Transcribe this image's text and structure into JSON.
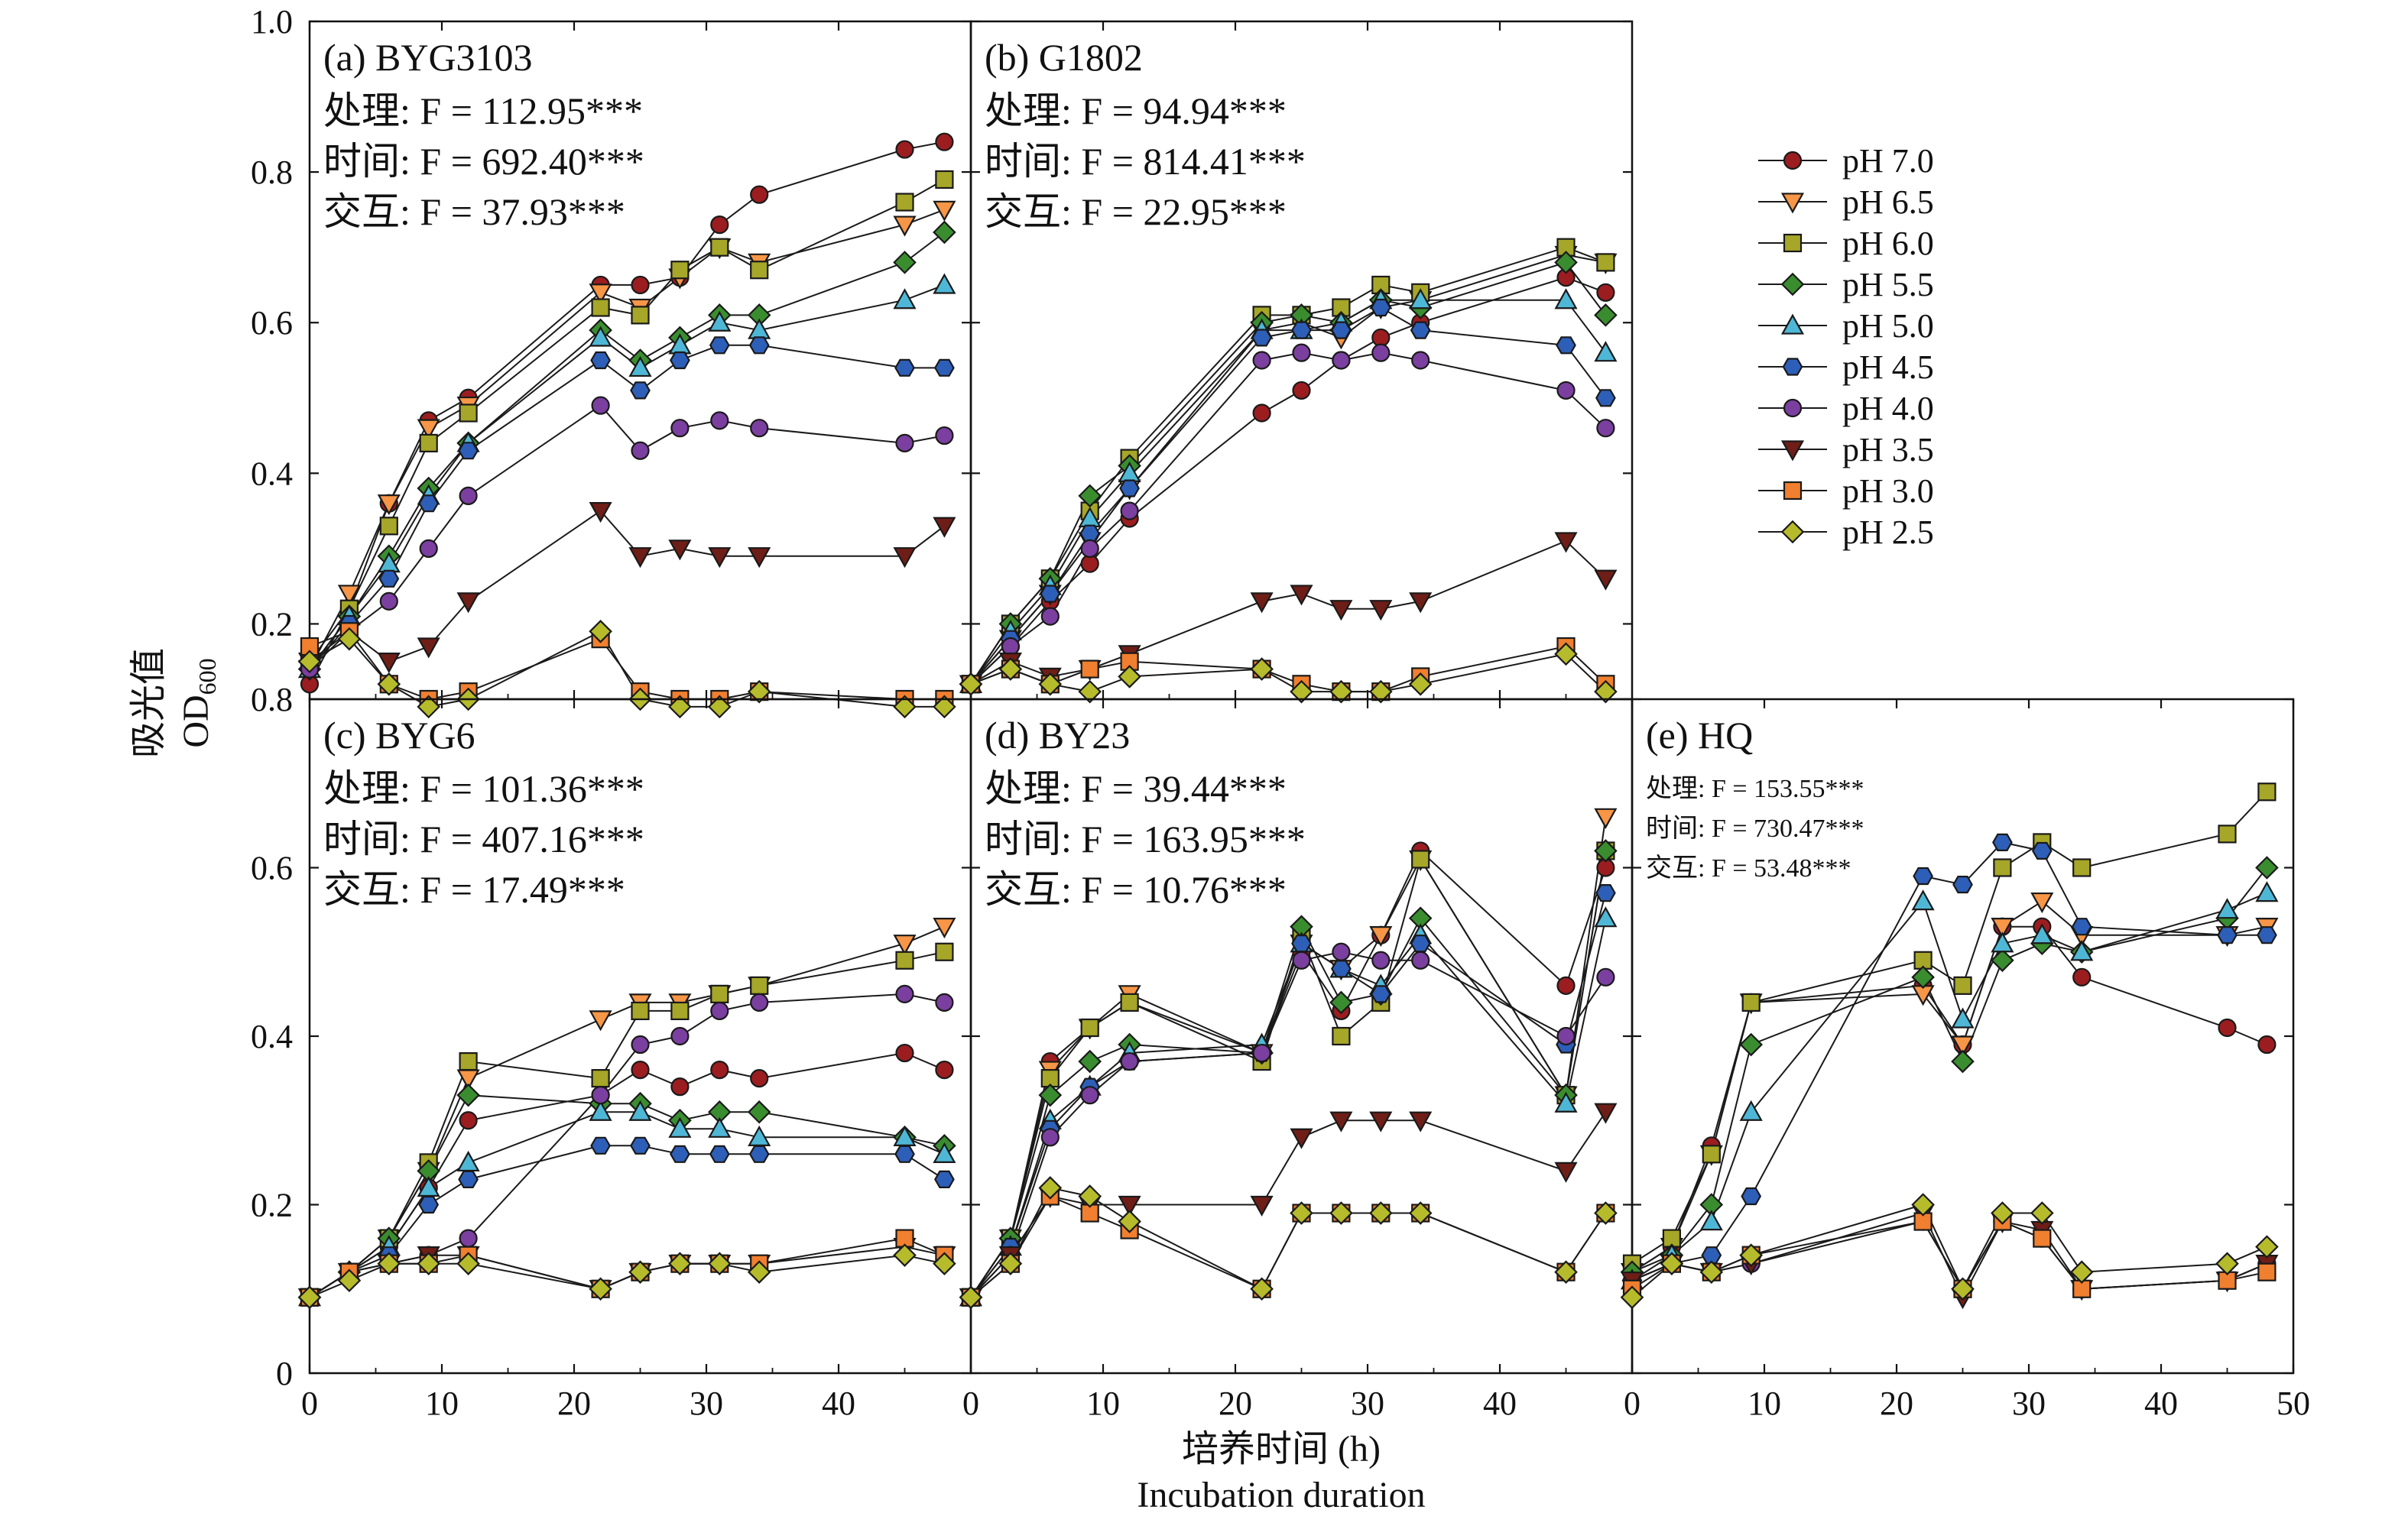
{
  "figure": {
    "ylabel_cn": "吸光值",
    "ylabel_od": "OD",
    "ylabel_od_sub": "600",
    "xlabel_cn": "培养时间 (h)",
    "xlabel_en": "Incubation duration"
  },
  "chart_data": [
    {
      "type": "line",
      "panel": "(a) BYG3103",
      "stats": [
        "处理: F = 112.95***",
        "时间: F = 692.40***",
        "交互: F = 37.93***"
      ],
      "x_ticks": [
        "0",
        "10",
        "20",
        "30",
        "40"
      ],
      "y_ticks": [
        "0.2",
        "0.4",
        "0.6",
        "0.8",
        "1.0"
      ],
      "xlim": [
        0,
        50
      ],
      "ylim": [
        0.1,
        1.0
      ],
      "x": [
        0,
        3,
        6,
        9,
        12,
        22,
        25,
        28,
        31,
        34,
        45,
        48
      ],
      "series": [
        {
          "name": "pH 7.0",
          "values": [
            0.12,
            0.22,
            0.36,
            0.47,
            0.5,
            0.65,
            0.65,
            0.66,
            0.73,
            0.77,
            0.83,
            0.84
          ]
        },
        {
          "name": "pH 6.5",
          "values": [
            0.14,
            0.24,
            0.36,
            0.46,
            0.49,
            0.64,
            0.62,
            0.66,
            0.7,
            0.68,
            0.73,
            0.75
          ]
        },
        {
          "name": "pH 6.0",
          "values": [
            0.15,
            0.22,
            0.33,
            0.44,
            0.48,
            0.62,
            0.61,
            0.67,
            0.7,
            0.67,
            0.76,
            0.79
          ]
        },
        {
          "name": "pH 5.5",
          "values": [
            0.14,
            0.21,
            0.29,
            0.38,
            0.44,
            0.59,
            0.55,
            0.58,
            0.61,
            0.61,
            0.68,
            0.72
          ]
        },
        {
          "name": "pH 5.0",
          "values": [
            0.14,
            0.21,
            0.28,
            0.37,
            0.44,
            0.58,
            0.54,
            0.57,
            0.6,
            0.59,
            0.63,
            0.65
          ]
        },
        {
          "name": "pH 4.5",
          "values": [
            0.14,
            0.2,
            0.26,
            0.36,
            0.43,
            0.55,
            0.51,
            0.55,
            0.57,
            0.57,
            0.54,
            0.54
          ]
        },
        {
          "name": "pH 4.0",
          "values": [
            0.14,
            0.19,
            0.23,
            0.3,
            0.37,
            0.49,
            0.43,
            0.46,
            0.47,
            0.46,
            0.44,
            0.45
          ]
        },
        {
          "name": "pH 3.5",
          "values": [
            0.15,
            0.19,
            0.15,
            0.17,
            0.23,
            0.35,
            0.29,
            0.3,
            0.29,
            0.29,
            0.29,
            0.33
          ]
        },
        {
          "name": "pH 3.0",
          "values": [
            0.17,
            0.19,
            0.12,
            0.1,
            0.11,
            0.18,
            0.11,
            0.1,
            0.1,
            0.11,
            0.1,
            0.1
          ]
        },
        {
          "name": "pH 2.5",
          "values": [
            0.15,
            0.18,
            0.12,
            0.09,
            0.1,
            0.19,
            0.1,
            0.09,
            0.09,
            0.11,
            0.09,
            0.09
          ]
        }
      ]
    },
    {
      "type": "line",
      "panel": "(b) G1802",
      "stats": [
        "处理: F = 94.94***",
        "时间: F = 814.41***",
        "交互: F = 22.95***"
      ],
      "x_ticks": [
        "0",
        "10",
        "20",
        "30",
        "40"
      ],
      "y_ticks": [],
      "xlim": [
        0,
        50
      ],
      "ylim": [
        0.1,
        1.0
      ],
      "x": [
        0,
        3,
        6,
        9,
        12,
        22,
        25,
        28,
        31,
        34,
        45,
        48
      ],
      "series": [
        {
          "name": "pH 7.0",
          "values": [
            0.12,
            0.17,
            0.23,
            0.28,
            0.34,
            0.48,
            0.51,
            0.55,
            0.58,
            0.6,
            0.66,
            0.64
          ]
        },
        {
          "name": "pH 6.5",
          "values": [
            0.12,
            0.18,
            0.24,
            0.31,
            0.38,
            0.59,
            0.6,
            0.58,
            0.62,
            0.63,
            0.69,
            0.68
          ]
        },
        {
          "name": "pH 6.0",
          "values": [
            0.12,
            0.2,
            0.26,
            0.35,
            0.42,
            0.61,
            0.61,
            0.62,
            0.65,
            0.64,
            0.7,
            0.68
          ]
        },
        {
          "name": "pH 5.5",
          "values": [
            0.12,
            0.2,
            0.26,
            0.37,
            0.41,
            0.6,
            0.61,
            0.6,
            0.63,
            0.62,
            0.68,
            0.61
          ]
        },
        {
          "name": "pH 5.0",
          "values": [
            0.12,
            0.19,
            0.25,
            0.34,
            0.4,
            0.59,
            0.59,
            0.6,
            0.63,
            0.63,
            0.63,
            0.56
          ]
        },
        {
          "name": "pH 4.5",
          "values": [
            0.12,
            0.18,
            0.24,
            0.32,
            0.38,
            0.58,
            0.59,
            0.59,
            0.62,
            0.59,
            0.57,
            0.5
          ]
        },
        {
          "name": "pH 4.0",
          "values": [
            0.12,
            0.17,
            0.21,
            0.3,
            0.35,
            0.55,
            0.56,
            0.55,
            0.56,
            0.55,
            0.51,
            0.46
          ]
        },
        {
          "name": "pH 3.5",
          "values": [
            0.12,
            0.15,
            0.13,
            0.14,
            0.16,
            0.23,
            0.24,
            0.22,
            0.22,
            0.23,
            0.31,
            0.26
          ]
        },
        {
          "name": "pH 3.0",
          "values": [
            0.12,
            0.14,
            0.12,
            0.14,
            0.15,
            0.14,
            0.12,
            0.11,
            0.11,
            0.13,
            0.17,
            0.12
          ]
        },
        {
          "name": "pH 2.5",
          "values": [
            0.12,
            0.14,
            0.12,
            0.11,
            0.13,
            0.14,
            0.11,
            0.11,
            0.11,
            0.12,
            0.16,
            0.11
          ]
        }
      ]
    },
    {
      "type": "line",
      "panel": "(c) BYG6",
      "stats": [
        "处理: F = 101.36***",
        "时间: F = 407.16***",
        "交互: F = 17.49***"
      ],
      "x_ticks": [
        "0",
        "10",
        "20",
        "30",
        "40"
      ],
      "y_ticks": [
        "0",
        "0.2",
        "0.4",
        "0.6",
        "0.8"
      ],
      "xlim": [
        0,
        50
      ],
      "ylim": [
        0,
        0.8
      ],
      "x": [
        0,
        3,
        6,
        9,
        12,
        22,
        25,
        28,
        31,
        34,
        45,
        48
      ],
      "series": [
        {
          "name": "pH 7.0",
          "values": [
            0.09,
            0.12,
            0.15,
            0.22,
            0.3,
            0.33,
            0.36,
            0.34,
            0.36,
            0.35,
            0.38,
            0.36
          ]
        },
        {
          "name": "pH 6.5",
          "values": [
            0.09,
            0.12,
            0.16,
            0.24,
            0.35,
            0.42,
            0.44,
            0.44,
            0.45,
            0.46,
            0.51,
            0.53
          ]
        },
        {
          "name": "pH 6.0",
          "values": [
            0.09,
            0.12,
            0.16,
            0.25,
            0.37,
            0.35,
            0.43,
            0.43,
            0.45,
            0.46,
            0.49,
            0.5
          ]
        },
        {
          "name": "pH 5.5",
          "values": [
            0.09,
            0.12,
            0.16,
            0.24,
            0.33,
            0.32,
            0.32,
            0.3,
            0.31,
            0.31,
            0.28,
            0.27
          ]
        },
        {
          "name": "pH 5.0",
          "values": [
            0.09,
            0.12,
            0.15,
            0.22,
            0.25,
            0.31,
            0.31,
            0.29,
            0.29,
            0.28,
            0.28,
            0.26
          ]
        },
        {
          "name": "pH 4.5",
          "values": [
            0.09,
            0.12,
            0.14,
            0.2,
            0.23,
            0.27,
            0.27,
            0.26,
            0.26,
            0.26,
            0.26,
            0.23
          ]
        },
        {
          "name": "pH 4.0",
          "values": [
            0.09,
            0.12,
            0.13,
            0.14,
            0.16,
            0.33,
            0.39,
            0.4,
            0.43,
            0.44,
            0.45,
            0.44
          ]
        },
        {
          "name": "pH 3.5",
          "values": [
            0.09,
            0.12,
            0.13,
            0.14,
            0.14,
            0.1,
            0.12,
            0.13,
            0.13,
            0.13,
            0.15,
            0.14
          ]
        },
        {
          "name": "pH 3.0",
          "values": [
            0.09,
            0.12,
            0.13,
            0.13,
            0.14,
            0.1,
            0.12,
            0.13,
            0.13,
            0.13,
            0.16,
            0.14
          ]
        },
        {
          "name": "pH 2.5",
          "values": [
            0.09,
            0.11,
            0.13,
            0.13,
            0.13,
            0.1,
            0.12,
            0.13,
            0.13,
            0.12,
            0.14,
            0.13
          ]
        }
      ]
    },
    {
      "type": "line",
      "panel": "(d) BY23",
      "stats": [
        "处理: F = 39.44***",
        "时间: F = 163.95***",
        "交互: F = 10.76***"
      ],
      "x_ticks": [
        "0",
        "10",
        "20",
        "30",
        "40"
      ],
      "y_ticks": [],
      "xlim": [
        0,
        50
      ],
      "ylim": [
        0,
        0.8
      ],
      "x": [
        0,
        3,
        6,
        9,
        12,
        22,
        25,
        28,
        31,
        34,
        45,
        48
      ],
      "series": [
        {
          "name": "pH 7.0",
          "values": [
            0.09,
            0.16,
            0.37,
            0.41,
            0.44,
            0.38,
            0.5,
            0.43,
            0.52,
            0.62,
            0.46,
            0.6
          ]
        },
        {
          "name": "pH 6.5",
          "values": [
            0.09,
            0.16,
            0.36,
            0.41,
            0.45,
            0.38,
            0.51,
            0.48,
            0.52,
            0.61,
            0.33,
            0.66
          ]
        },
        {
          "name": "pH 6.0",
          "values": [
            0.09,
            0.16,
            0.35,
            0.41,
            0.44,
            0.37,
            0.52,
            0.4,
            0.44,
            0.61,
            0.33,
            0.62
          ]
        },
        {
          "name": "pH 5.5",
          "values": [
            0.09,
            0.16,
            0.33,
            0.37,
            0.39,
            0.38,
            0.53,
            0.44,
            0.45,
            0.54,
            0.33,
            0.62
          ]
        },
        {
          "name": "pH 5.0",
          "values": [
            0.09,
            0.15,
            0.3,
            0.34,
            0.38,
            0.39,
            0.51,
            0.48,
            0.46,
            0.52,
            0.32,
            0.54
          ]
        },
        {
          "name": "pH 4.5",
          "values": [
            0.09,
            0.15,
            0.29,
            0.34,
            0.37,
            0.38,
            0.51,
            0.48,
            0.45,
            0.51,
            0.39,
            0.57
          ]
        },
        {
          "name": "pH 4.0",
          "values": [
            0.09,
            0.14,
            0.28,
            0.33,
            0.37,
            0.38,
            0.49,
            0.5,
            0.49,
            0.49,
            0.4,
            0.47
          ]
        },
        {
          "name": "pH 3.5",
          "values": [
            0.09,
            0.14,
            0.21,
            0.2,
            0.2,
            0.2,
            0.28,
            0.3,
            0.3,
            0.3,
            0.24,
            0.31
          ]
        },
        {
          "name": "pH 3.0",
          "values": [
            0.09,
            0.13,
            0.21,
            0.19,
            0.17,
            0.1,
            0.19,
            0.19,
            0.19,
            0.19,
            0.12,
            0.19
          ]
        },
        {
          "name": "pH 2.5",
          "values": [
            0.09,
            0.13,
            0.22,
            0.21,
            0.18,
            0.1,
            0.19,
            0.19,
            0.19,
            0.19,
            0.12,
            0.19
          ]
        }
      ]
    },
    {
      "type": "line",
      "panel": "(e) HQ",
      "stats": [
        "处理: F = 153.55***",
        "时间: F = 730.47***",
        "交互: F = 53.48***"
      ],
      "x_ticks": [
        "0",
        "10",
        "20",
        "30",
        "40",
        "50"
      ],
      "y_ticks": [],
      "xlim": [
        0,
        50
      ],
      "ylim": [
        0,
        0.8
      ],
      "x": [
        0,
        3,
        6,
        9,
        22,
        25,
        28,
        31,
        34,
        45,
        48
      ],
      "series": [
        {
          "name": "pH 7.0",
          "values": [
            0.12,
            0.15,
            0.27,
            0.44,
            0.46,
            0.39,
            0.53,
            0.53,
            0.47,
            0.41,
            0.39
          ]
        },
        {
          "name": "pH 6.5",
          "values": [
            0.12,
            0.15,
            0.26,
            0.44,
            0.45,
            0.39,
            0.53,
            0.56,
            0.52,
            0.52,
            0.53
          ]
        },
        {
          "name": "pH 6.0",
          "values": [
            0.13,
            0.16,
            0.26,
            0.44,
            0.49,
            0.46,
            0.6,
            0.63,
            0.6,
            0.64,
            0.69
          ]
        },
        {
          "name": "pH 5.5",
          "values": [
            0.12,
            0.14,
            0.2,
            0.39,
            0.47,
            0.37,
            0.49,
            0.51,
            0.5,
            0.54,
            0.6
          ]
        },
        {
          "name": "pH 5.0",
          "values": [
            0.11,
            0.14,
            0.18,
            0.31,
            0.56,
            0.42,
            0.51,
            0.52,
            0.5,
            0.55,
            0.57
          ]
        },
        {
          "name": "pH 4.5",
          "values": [
            0.11,
            0.13,
            0.14,
            0.21,
            0.59,
            0.58,
            0.63,
            0.62,
            0.53,
            0.52,
            0.52
          ]
        },
        {
          "name": "pH 4.0",
          "values": [
            0.11,
            0.13,
            0.12,
            0.13,
            0.18,
            0.1,
            0.18,
            0.16,
            0.1,
            0.11,
            0.13
          ]
        },
        {
          "name": "pH 3.5",
          "values": [
            0.11,
            0.13,
            0.12,
            0.13,
            0.19,
            0.09,
            0.18,
            0.17,
            0.1,
            0.11,
            0.13
          ]
        },
        {
          "name": "pH 3.0",
          "values": [
            0.1,
            0.13,
            0.12,
            0.14,
            0.18,
            0.1,
            0.18,
            0.16,
            0.1,
            0.11,
            0.12
          ]
        },
        {
          "name": "pH 2.5",
          "values": [
            0.09,
            0.13,
            0.12,
            0.14,
            0.2,
            0.1,
            0.19,
            0.19,
            0.12,
            0.13,
            0.15
          ]
        }
      ]
    }
  ],
  "legend": [
    {
      "label": "pH 7.0",
      "color": "#9b1d20",
      "shape": "circle"
    },
    {
      "label": "pH 6.5",
      "color": "#f79646",
      "shape": "triangle-down"
    },
    {
      "label": "pH 6.0",
      "color": "#a6a628",
      "shape": "square"
    },
    {
      "label": "pH 5.5",
      "color": "#3a8d2f",
      "shape": "diamond"
    },
    {
      "label": "pH 5.0",
      "color": "#4fb7d6",
      "shape": "triangle-up"
    },
    {
      "label": "pH 4.5",
      "color": "#2d5fb8",
      "shape": "hexagon"
    },
    {
      "label": "pH 4.0",
      "color": "#7b3fa0",
      "shape": "circle"
    },
    {
      "label": "pH 3.5",
      "color": "#6e1e17",
      "shape": "triangle-down"
    },
    {
      "label": "pH 3.0",
      "color": "#f07f2f",
      "shape": "square"
    },
    {
      "label": "pH 2.5",
      "color": "#b6bb2b",
      "shape": "diamond"
    }
  ]
}
